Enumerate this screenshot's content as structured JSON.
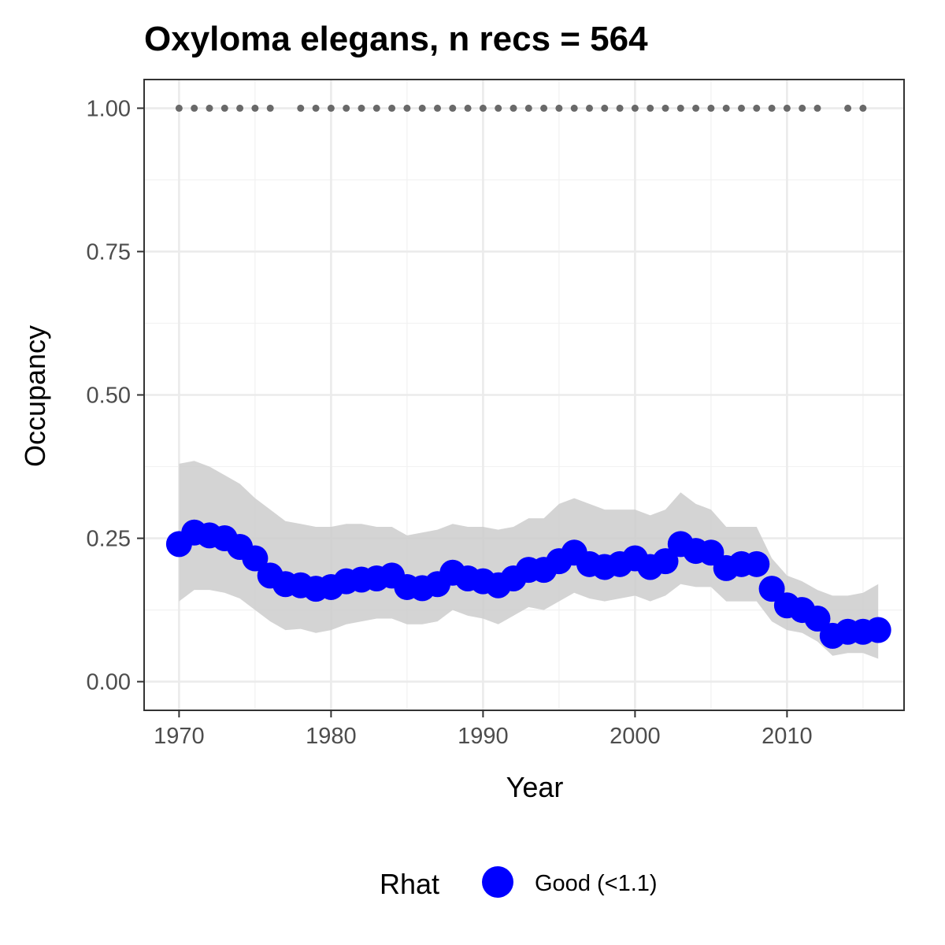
{
  "chart_data": {
    "type": "line",
    "title": "Oxyloma elegans, n recs = 564",
    "xlabel": "Year",
    "ylabel": "Occupancy",
    "xlim": [
      1967.7,
      2017.7
    ],
    "ylim": [
      -0.05,
      1.05
    ],
    "x_ticks": [
      1970,
      1980,
      1990,
      2000,
      2010
    ],
    "x_tick_labels": [
      "1970",
      "1980",
      "1990",
      "2000",
      "2010"
    ],
    "y_ticks": [
      0,
      0.25,
      0.5,
      0.75,
      1.0
    ],
    "y_tick_labels": [
      "0.00",
      "0.25",
      "0.50",
      "0.75",
      "1.00"
    ],
    "grid": true,
    "legend": {
      "title": "Rhat",
      "position": "bottom",
      "entries": [
        {
          "label": "Good (<1.1)",
          "color": "#0000ff"
        }
      ]
    },
    "series": [
      {
        "color": "#0000ff",
        "x": [
          1970,
          1971,
          1972,
          1973,
          1974,
          1975,
          1976,
          1977,
          1978,
          1979,
          1980,
          1981,
          1982,
          1983,
          1984,
          1985,
          1986,
          1987,
          1988,
          1989,
          1990,
          1991,
          1992,
          1993,
          1994,
          1995,
          1996,
          1997,
          1998,
          1999,
          2000,
          2001,
          2002,
          2003,
          2004,
          2005,
          2006,
          2007,
          2008,
          2009,
          2010,
          2011,
          2012,
          2013,
          2014,
          2015,
          2016
        ],
        "y": [
          0.24,
          0.26,
          0.255,
          0.25,
          0.235,
          0.215,
          0.185,
          0.17,
          0.168,
          0.162,
          0.165,
          0.175,
          0.178,
          0.18,
          0.185,
          0.165,
          0.163,
          0.17,
          0.19,
          0.18,
          0.175,
          0.168,
          0.18,
          0.195,
          0.195,
          0.21,
          0.225,
          0.205,
          0.2,
          0.205,
          0.215,
          0.2,
          0.21,
          0.24,
          0.228,
          0.225,
          0.198,
          0.205,
          0.205,
          0.162,
          0.133,
          0.125,
          0.11,
          0.08,
          0.087,
          0.087,
          0.09
        ],
        "ci_lower": [
          0.14,
          0.16,
          0.16,
          0.155,
          0.145,
          0.125,
          0.105,
          0.09,
          0.092,
          0.085,
          0.09,
          0.1,
          0.105,
          0.11,
          0.11,
          0.1,
          0.1,
          0.105,
          0.125,
          0.115,
          0.11,
          0.1,
          0.115,
          0.13,
          0.125,
          0.14,
          0.155,
          0.145,
          0.14,
          0.145,
          0.15,
          0.14,
          0.15,
          0.17,
          0.165,
          0.165,
          0.14,
          0.14,
          0.14,
          0.105,
          0.09,
          0.085,
          0.07,
          0.045,
          0.05,
          0.05,
          0.04
        ],
        "ci_upper": [
          0.38,
          0.385,
          0.375,
          0.36,
          0.345,
          0.32,
          0.3,
          0.28,
          0.275,
          0.27,
          0.27,
          0.275,
          0.275,
          0.27,
          0.27,
          0.255,
          0.26,
          0.265,
          0.275,
          0.27,
          0.27,
          0.265,
          0.27,
          0.285,
          0.285,
          0.31,
          0.32,
          0.31,
          0.3,
          0.3,
          0.3,
          0.29,
          0.3,
          0.33,
          0.31,
          0.3,
          0.27,
          0.27,
          0.27,
          0.215,
          0.185,
          0.175,
          0.16,
          0.15,
          0.15,
          0.155,
          0.17
        ]
      }
    ],
    "record_years": [
      1970,
      1971,
      1972,
      1973,
      1974,
      1975,
      1976,
      1978,
      1979,
      1980,
      1981,
      1982,
      1983,
      1984,
      1985,
      1986,
      1987,
      1988,
      1989,
      1990,
      1991,
      1992,
      1993,
      1994,
      1995,
      1996,
      1997,
      1998,
      1999,
      2000,
      2001,
      2002,
      2003,
      2004,
      2005,
      2006,
      2007,
      2008,
      2009,
      2010,
      2011,
      2012,
      2014,
      2015
    ],
    "record_value": 1.0,
    "record_color": "#696969",
    "ribbon_color": "#cccccc"
  }
}
